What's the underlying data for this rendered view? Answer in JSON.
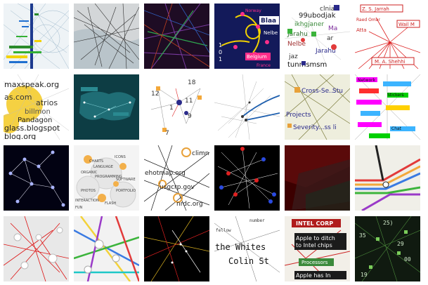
{
  "tiles": [
    {
      "id": "r1c1",
      "labels": []
    },
    {
      "id": "r1c2",
      "labels": []
    },
    {
      "id": "r1c3",
      "labels": []
    },
    {
      "id": "r1c4",
      "labels": [
        "Norway",
        "France",
        "Blaa",
        "Belgium",
        "Nelbe",
        "1",
        "0",
        "1"
      ]
    },
    {
      "id": "r1c5",
      "labels": [
        "clnia",
        "99ubodjak",
        "ikhgjaner",
        "Ma",
        "Jarahu",
        "ar",
        "Nelbe",
        "Jarahu",
        "jaz",
        "tunmsmsm"
      ]
    },
    {
      "id": "r1c6",
      "labels": [
        "Z. S. Jarrah",
        "Raed Omar",
        "Wail M",
        "Atta",
        "M. A. Shehhi"
      ]
    },
    {
      "id": "r2c1",
      "labels": [
        "maxspeak.org",
        "as.com",
        "atrios",
        "billmon",
        "Pandagon",
        "glass.blogspot",
        "blog.org"
      ]
    },
    {
      "id": "r2c2",
      "labels": []
    },
    {
      "id": "r2c3",
      "labels": [
        "18",
        "12",
        "11",
        "9",
        "7",
        "1"
      ]
    },
    {
      "id": "r2c4",
      "labels": []
    },
    {
      "id": "r2c5",
      "labels": [
        "Cross-Se...",
        "Stu",
        "Projects",
        "Severity...ss li"
      ]
    },
    {
      "id": "r2c6",
      "labels": [
        "Network",
        "Stickers",
        "Chat"
      ]
    },
    {
      "id": "r3c1",
      "labels": []
    },
    {
      "id": "r3c2",
      "labels": [
        "ICONS",
        "CHARTS",
        "LANGUAGE",
        "ORGANIC",
        "PROGRAMMING",
        "SOFTWARE",
        "PHOTOS",
        "PORTFOLIO",
        "INTERACTION",
        "FLASH",
        "FUN"
      ]
    },
    {
      "id": "r3c3",
      "labels": [
        "climne",
        "ehotmap.org",
        "usgcrp.gov",
        "nrdc.org"
      ]
    },
    {
      "id": "r3c4",
      "labels": []
    },
    {
      "id": "r3c5",
      "labels": []
    },
    {
      "id": "r3c6",
      "labels": []
    },
    {
      "id": "r4c1",
      "labels": []
    },
    {
      "id": "r4c2",
      "labels": []
    },
    {
      "id": "r4c3",
      "labels": []
    },
    {
      "id": "r4c4",
      "labels": [
        "the Whites",
        "Colin St",
        "fellow",
        "number"
      ]
    },
    {
      "id": "r4c5",
      "labels": [
        "INTEL CORP",
        "Apple to ditch",
        "to Intel chips",
        "Processors",
        "Apple has In"
      ]
    },
    {
      "id": "r4c6",
      "labels": [
        "25)",
        "35",
        "29",
        "00",
        "19"
      ]
    }
  ]
}
